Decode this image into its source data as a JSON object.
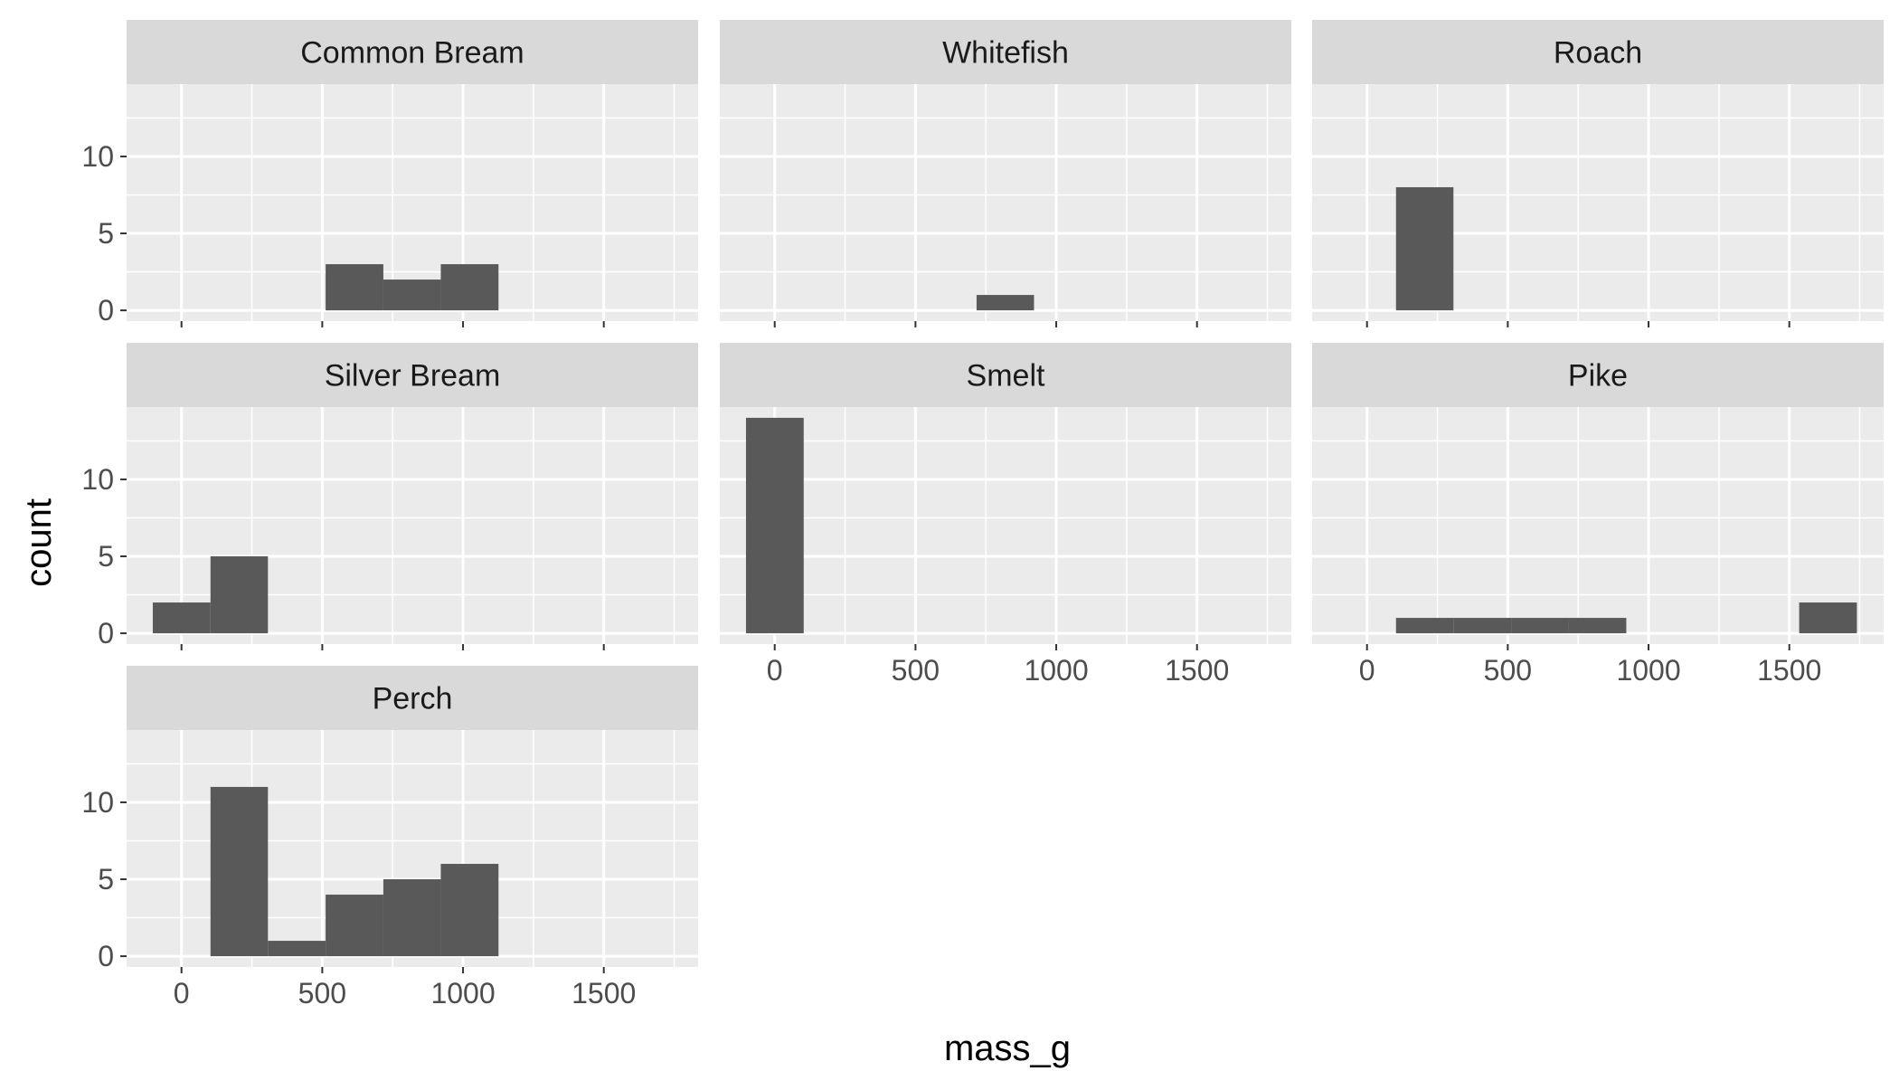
{
  "chart_data": {
    "type": "bar",
    "subtype": "faceted histogram",
    "xlabel": "mass_g",
    "ylabel": "count",
    "xlim": [
      -195,
      1835
    ],
    "ylim": [
      -0.7,
      14.7
    ],
    "x_ticks": [
      0,
      500,
      1000,
      1500
    ],
    "x_tick_labels": [
      "0",
      "500",
      "1000",
      "1500"
    ],
    "y_ticks": [
      0,
      5,
      10
    ],
    "y_tick_labels": [
      "0",
      "5",
      "10"
    ],
    "grid": true,
    "colors": {
      "panel_bg": "#EBEBEB",
      "strip_bg": "#D9D9D9",
      "grid": "#FFFFFF",
      "bar": "#595959",
      "tick": "#333333",
      "tick_text": "#4D4D4D"
    },
    "panels": [
      {
        "label": "Common Bream",
        "bins": [
          {
            "x0": 512,
            "x1": 717,
            "count": 3
          },
          {
            "x0": 717,
            "x1": 921,
            "count": 2
          },
          {
            "x0": 921,
            "x1": 1126,
            "count": 3
          }
        ]
      },
      {
        "label": "Whitefish",
        "bins": [
          {
            "x0": 717,
            "x1": 921,
            "count": 1
          }
        ]
      },
      {
        "label": "Roach",
        "bins": [
          {
            "x0": 103,
            "x1": 307,
            "count": 8
          }
        ]
      },
      {
        "label": "Silver Bream",
        "bins": [
          {
            "x0": -102,
            "x1": 103,
            "count": 2
          },
          {
            "x0": 103,
            "x1": 307,
            "count": 5
          }
        ]
      },
      {
        "label": "Smelt",
        "bins": [
          {
            "x0": -102,
            "x1": 103,
            "count": 14
          }
        ]
      },
      {
        "label": "Pike",
        "bins": [
          {
            "x0": 103,
            "x1": 307,
            "count": 1
          },
          {
            "x0": 307,
            "x1": 512,
            "count": 1
          },
          {
            "x0": 512,
            "x1": 717,
            "count": 1
          },
          {
            "x0": 717,
            "x1": 921,
            "count": 1
          },
          {
            "x0": 1535,
            "x1": 1740,
            "count": 2
          }
        ]
      },
      {
        "label": "Perch",
        "bins": [
          {
            "x0": 103,
            "x1": 307,
            "count": 11
          },
          {
            "x0": 307,
            "x1": 512,
            "count": 1
          },
          {
            "x0": 512,
            "x1": 717,
            "count": 4
          },
          {
            "x0": 717,
            "x1": 921,
            "count": 5
          },
          {
            "x0": 921,
            "x1": 1126,
            "count": 6
          }
        ]
      }
    ]
  }
}
